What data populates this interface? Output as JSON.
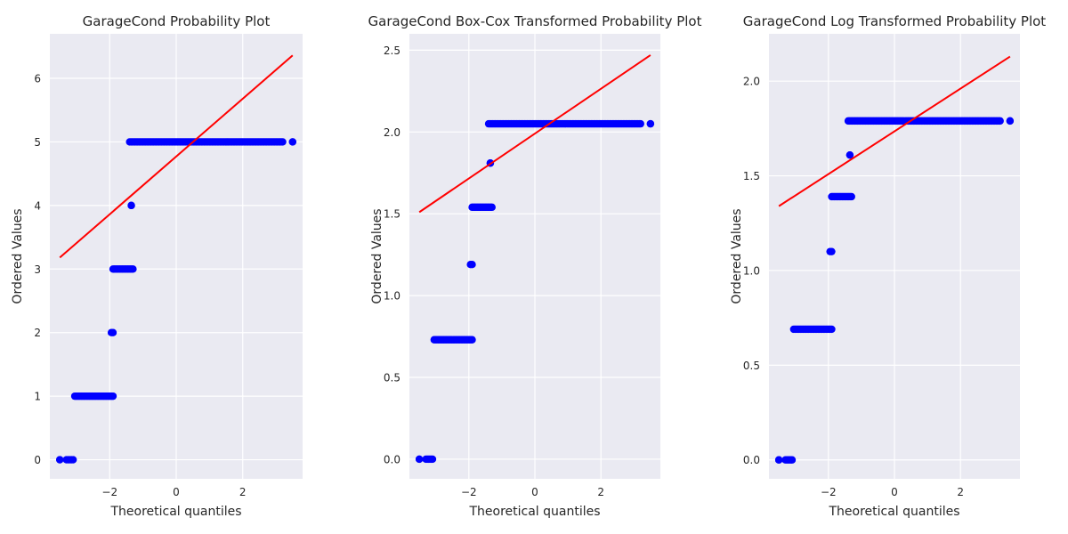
{
  "figure": {
    "background": "#ffffff",
    "axes_facecolor": "#eaeaf2",
    "grid_color": "#ffffff",
    "point_color": "#0000ff",
    "line_color": "#ff0000"
  },
  "chart_data": [
    {
      "type": "scatter",
      "title": "GarageCond Probability Plot",
      "xlabel": "Theoretical quantiles",
      "ylabel": "Ordered Values",
      "xlim": [
        -3.8,
        3.8
      ],
      "ylim": [
        -0.3,
        6.7
      ],
      "xticks": [
        -2,
        0,
        2
      ],
      "yticks": [
        0,
        1,
        2,
        3,
        4,
        5,
        6
      ],
      "xtick_labels": [
        "−2",
        "0",
        "2"
      ],
      "ytick_labels": [
        "0",
        "1",
        "2",
        "3",
        "4",
        "5",
        "6"
      ],
      "grid": true,
      "fit_line": {
        "x": [
          -3.5,
          3.5
        ],
        "y": [
          3.18,
          6.36
        ]
      },
      "point_groups": [
        {
          "y": 0,
          "x_start": -3.5,
          "x_end": -3.5
        },
        {
          "y": 0,
          "x_start": -3.3,
          "x_end": -3.1
        },
        {
          "y": 1,
          "x_start": -3.05,
          "x_end": -1.9
        },
        {
          "y": 2,
          "x_start": -1.95,
          "x_end": -1.9
        },
        {
          "y": 3,
          "x_start": -1.9,
          "x_end": -1.3
        },
        {
          "y": 4,
          "x_start": -1.35,
          "x_end": -1.35
        },
        {
          "y": 5,
          "x_start": -1.4,
          "x_end": 3.2
        },
        {
          "y": 5,
          "x_start": 3.5,
          "x_end": 3.5
        }
      ]
    },
    {
      "type": "scatter",
      "title": "GarageCond Box-Cox Transformed Probability Plot",
      "xlabel": "Theoretical quantiles",
      "ylabel": "Ordered Values",
      "xlim": [
        -3.8,
        3.8
      ],
      "ylim": [
        -0.12,
        2.6
      ],
      "xticks": [
        -2,
        0,
        2
      ],
      "yticks": [
        0.0,
        0.5,
        1.0,
        1.5,
        2.0,
        2.5
      ],
      "xtick_labels": [
        "−2",
        "0",
        "2"
      ],
      "ytick_labels": [
        "0.0",
        "0.5",
        "1.0",
        "1.5",
        "2.0",
        "2.5"
      ],
      "grid": true,
      "fit_line": {
        "x": [
          -3.5,
          3.5
        ],
        "y": [
          1.51,
          2.47
        ]
      },
      "point_groups": [
        {
          "y": 0,
          "x_start": -3.5,
          "x_end": -3.5
        },
        {
          "y": 0,
          "x_start": -3.3,
          "x_end": -3.1
        },
        {
          "y": 0.73,
          "x_start": -3.05,
          "x_end": -1.9
        },
        {
          "y": 1.19,
          "x_start": -1.95,
          "x_end": -1.9
        },
        {
          "y": 1.54,
          "x_start": -1.9,
          "x_end": -1.3
        },
        {
          "y": 1.81,
          "x_start": -1.35,
          "x_end": -1.35
        },
        {
          "y": 2.05,
          "x_start": -1.4,
          "x_end": 3.2
        },
        {
          "y": 2.05,
          "x_start": 3.5,
          "x_end": 3.5
        }
      ]
    },
    {
      "type": "scatter",
      "title": "GarageCond Log Transformed Probability Plot",
      "xlabel": "Theoretical quantiles",
      "ylabel": "Ordered Values",
      "xlim": [
        -3.8,
        3.8
      ],
      "ylim": [
        -0.1,
        2.25
      ],
      "xticks": [
        -2,
        0,
        2
      ],
      "yticks": [
        0.0,
        0.5,
        1.0,
        1.5,
        2.0
      ],
      "xtick_labels": [
        "−2",
        "0",
        "2"
      ],
      "ytick_labels": [
        "0.0",
        "0.5",
        "1.0",
        "1.5",
        "2.0"
      ],
      "grid": true,
      "fit_line": {
        "x": [
          -3.5,
          3.5
        ],
        "y": [
          1.34,
          2.13
        ]
      },
      "point_groups": [
        {
          "y": 0,
          "x_start": -3.5,
          "x_end": -3.5
        },
        {
          "y": 0,
          "x_start": -3.3,
          "x_end": -3.1
        },
        {
          "y": 0.69,
          "x_start": -3.05,
          "x_end": -1.9
        },
        {
          "y": 1.1,
          "x_start": -1.95,
          "x_end": -1.9
        },
        {
          "y": 1.39,
          "x_start": -1.9,
          "x_end": -1.3
        },
        {
          "y": 1.61,
          "x_start": -1.35,
          "x_end": -1.35
        },
        {
          "y": 1.79,
          "x_start": -1.4,
          "x_end": 3.2
        },
        {
          "y": 1.79,
          "x_start": 3.5,
          "x_end": 3.5
        }
      ]
    }
  ]
}
